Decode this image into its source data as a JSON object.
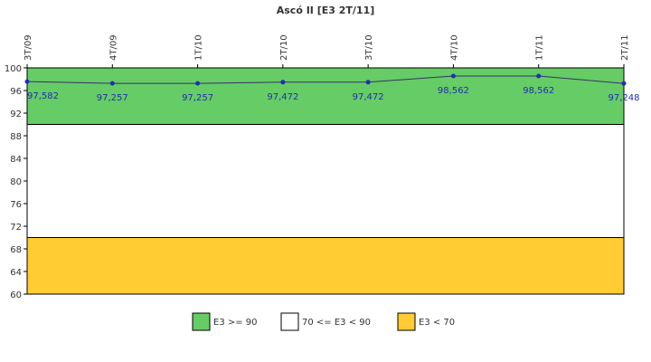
{
  "chart_data": {
    "type": "line",
    "title": "Ascó II [E3 2T/11]",
    "categories": [
      "3T/09",
      "4T/09",
      "1T/10",
      "2T/10",
      "3T/10",
      "4T/10",
      "1T/11",
      "2T/11"
    ],
    "series": [
      {
        "values": [
          97.582,
          97.257,
          97.257,
          97.472,
          97.472,
          98.562,
          98.562,
          97.248
        ],
        "labels": [
          "97,582",
          "97,257",
          "97,257",
          "97,472",
          "97,472",
          "98,562",
          "98,562",
          "97,248"
        ],
        "color": "#1f2fb0"
      }
    ],
    "ylim": [
      60,
      100
    ],
    "yticks": [
      60,
      64,
      68,
      72,
      76,
      80,
      84,
      88,
      92,
      96,
      100
    ],
    "bands": [
      {
        "from": 90,
        "to": 100,
        "color": "#66cc66",
        "label": "E3 >= 90"
      },
      {
        "from": 70,
        "to": 90,
        "color": "#ffffff",
        "label": "70 <= E3 < 90"
      },
      {
        "from": 60,
        "to": 70,
        "color": "#ffcc33",
        "label": "E3 < 70"
      }
    ],
    "legend_position": "bottom",
    "grid": false
  }
}
